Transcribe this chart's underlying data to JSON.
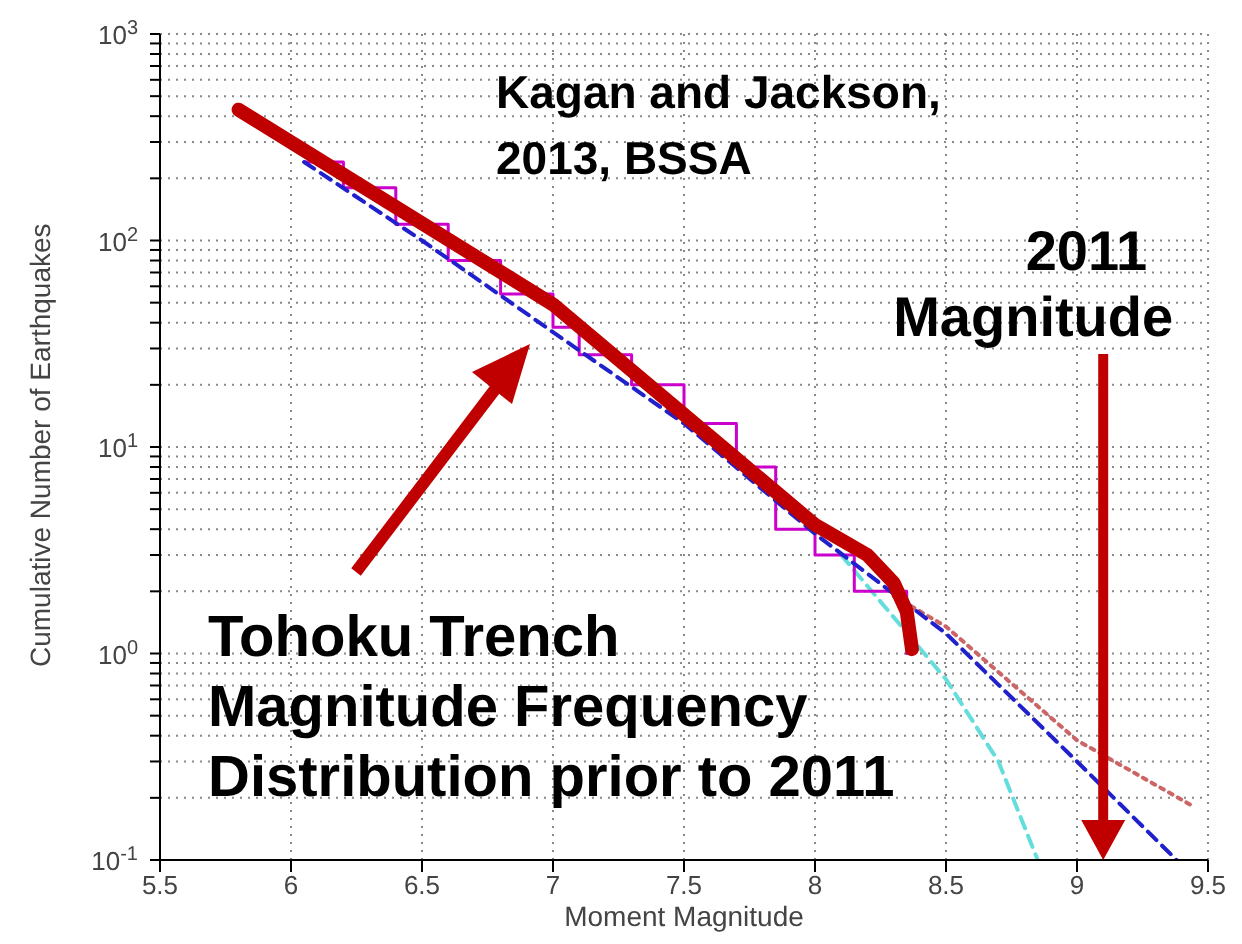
{
  "chart_data": {
    "type": "line",
    "xlabel": "Moment Magnitude",
    "ylabel": "Cumulative Number of Earthquakes",
    "log": "y",
    "grid": true,
    "legend": false,
    "xlim": [
      5.5,
      9.5
    ],
    "xticks": [
      5.5,
      6,
      6.5,
      7,
      7.5,
      8,
      8.5,
      9,
      9.5
    ],
    "ylim": [
      0.1,
      1000
    ],
    "yticks": [
      {
        "value": 0.1,
        "label": "10$^{-1}$"
      },
      {
        "value": 0.2,
        "label": null
      },
      {
        "value": 0.3,
        "label": null
      },
      {
        "value": 0.4,
        "label": null
      },
      {
        "value": 0.5,
        "label": null
      },
      {
        "value": 0.6,
        "label": null
      },
      {
        "value": 0.7,
        "label": null
      },
      {
        "value": 0.8,
        "label": null
      },
      {
        "value": 0.9,
        "label": null
      },
      {
        "value": 1,
        "label": "10$^{0}$"
      },
      {
        "value": 2,
        "label": null
      },
      {
        "value": 3,
        "label": null
      },
      {
        "value": 4,
        "label": null
      },
      {
        "value": 5,
        "label": null
      },
      {
        "value": 6,
        "label": null
      },
      {
        "value": 7,
        "label": null
      },
      {
        "value": 8,
        "label": null
      },
      {
        "value": 9,
        "label": null
      },
      {
        "value": 10,
        "label": "10$^{1}$"
      },
      {
        "value": 20,
        "label": null
      },
      {
        "value": 30,
        "label": null
      },
      {
        "value": 40,
        "label": null
      },
      {
        "value": 50,
        "label": null
      },
      {
        "value": 60,
        "label": null
      },
      {
        "value": 70,
        "label": null
      },
      {
        "value": 80,
        "label": null
      },
      {
        "value": 90,
        "label": null
      },
      {
        "value": 100,
        "label": "10$^{2}$"
      },
      {
        "value": 200,
        "label": null
      },
      {
        "value": 300,
        "label": null
      },
      {
        "value": 400,
        "label": null
      },
      {
        "value": 500,
        "label": null
      },
      {
        "value": 600,
        "label": null
      },
      {
        "value": 700,
        "label": null
      },
      {
        "value": 800,
        "label": null
      },
      {
        "value": 900,
        "label": null
      },
      {
        "value": 1000,
        "label": "10$^{3}$"
      }
    ],
    "series": [
      {
        "type": "line",
        "color": "#66dddd",
        "line_style": "dashed",
        "x": [
          8.1,
          8.5,
          8.7,
          8.85
        ],
        "values": [
          3.0,
          0.75,
          0.3,
          0.1
        ]
      },
      {
        "type": "line",
        "color": "#cc6666",
        "line_style": "dotted",
        "x": [
          8.3,
          8.5,
          9,
          9.45
        ],
        "values": [
          1.9,
          1.35,
          0.38,
          0.18
        ]
      },
      {
        "type": "step",
        "color": "#cc00cc",
        "line_style": "solid",
        "x": [
          6.05,
          6.2,
          6.4,
          6.6,
          6.8,
          7.0,
          7.1,
          7.3,
          7.5,
          7.7,
          7.85,
          8.0,
          8.15,
          8.35
        ],
        "values": [
          240,
          180,
          120,
          80,
          55,
          38,
          28,
          20,
          13,
          8,
          4,
          3,
          2,
          1
        ]
      },
      {
        "type": "line",
        "color": "#2020cc",
        "line_style": "dashed",
        "x": [
          6.05,
          6.5,
          7,
          7.5,
          8,
          8.5,
          9,
          9.38
        ],
        "values": [
          240,
          100,
          36,
          13,
          3.8,
          1.25,
          0.3,
          0.1
        ]
      },
      {
        "type": "line",
        "color": "#c00000",
        "line_style": "solid",
        "x": [
          5.8,
          7,
          8,
          8.2,
          8.3,
          8.35,
          8.37
        ],
        "values": [
          430,
          49,
          4.2,
          3,
          2.2,
          1.6,
          1.05
        ]
      }
    ],
    "ref_lines": [
      {
        "axis": "x",
        "value": 9.1,
        "label": "2011 Magnitude",
        "color": "#c00000"
      }
    ],
    "annotations": [
      "Kagan and Jackson,\n2013, BSSA",
      "Tohoku Trench\nMagnitude Frequency\nDistribution prior to 2011"
    ]
  }
}
